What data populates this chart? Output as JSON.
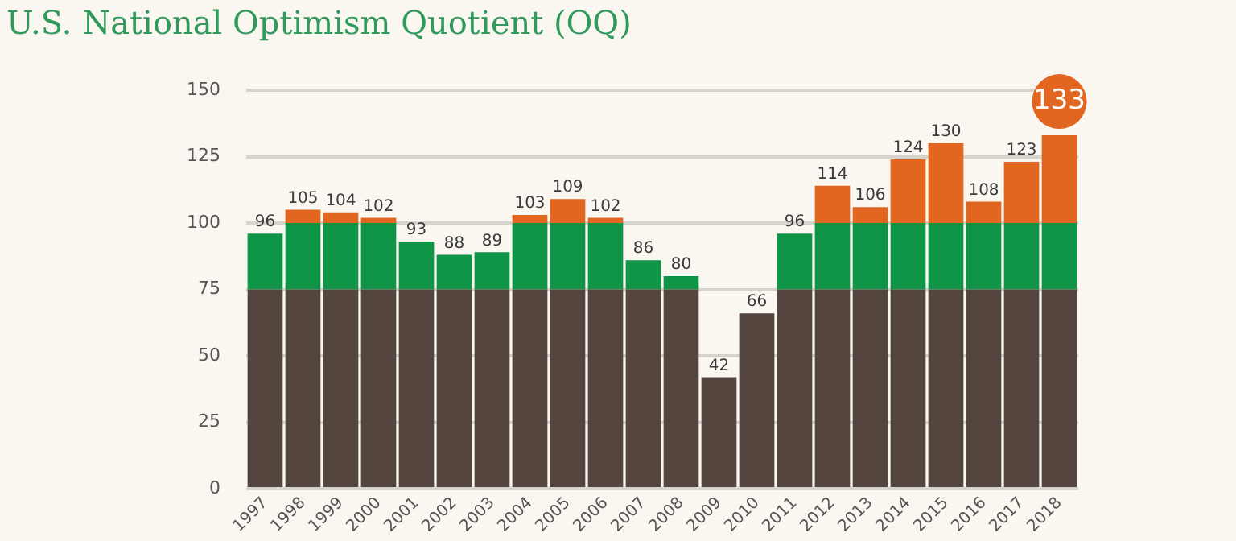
{
  "chart_data": {
    "type": "bar",
    "title": "U.S. National Optimism Quotient (OQ)",
    "stacked": true,
    "categories": [
      "1997",
      "1998",
      "1999",
      "2000",
      "2001",
      "2002",
      "2003",
      "2004",
      "2005",
      "2006",
      "2007",
      "2008",
      "2009",
      "2010",
      "2011",
      "2012",
      "2013",
      "2014",
      "2015",
      "2016",
      "2017",
      "2018"
    ],
    "series": [
      {
        "color": "#54463f",
        "values": [
          75,
          75,
          75,
          75,
          75,
          75,
          75,
          75,
          75,
          75,
          75,
          75,
          42,
          66,
          75,
          75,
          75,
          75,
          75,
          75,
          75,
          75
        ]
      },
      {
        "color": "#0e9548",
        "values": [
          21,
          25,
          25,
          25,
          18,
          13,
          14,
          25,
          25,
          25,
          11,
          5,
          0,
          0,
          21,
          25,
          25,
          25,
          25,
          25,
          25,
          25
        ]
      },
      {
        "color": "#e2661f",
        "values": [
          0,
          5,
          4,
          2,
          0,
          0,
          0,
          3,
          9,
          2,
          0,
          0,
          0,
          0,
          0,
          14,
          6,
          24,
          30,
          8,
          23,
          33
        ]
      }
    ],
    "totals": [
      "96",
      "105",
      "104",
      "102",
      "93",
      "88",
      "89",
      "103",
      "109",
      "102",
      "86",
      "80",
      "42",
      "66",
      "96",
      "114",
      "106",
      "124",
      "130",
      "108",
      "123",
      "133"
    ],
    "ylim": [
      0,
      150
    ],
    "yticks": [
      0,
      25,
      50,
      75,
      100,
      125,
      150
    ],
    "grid": "y",
    "legend": false
  }
}
